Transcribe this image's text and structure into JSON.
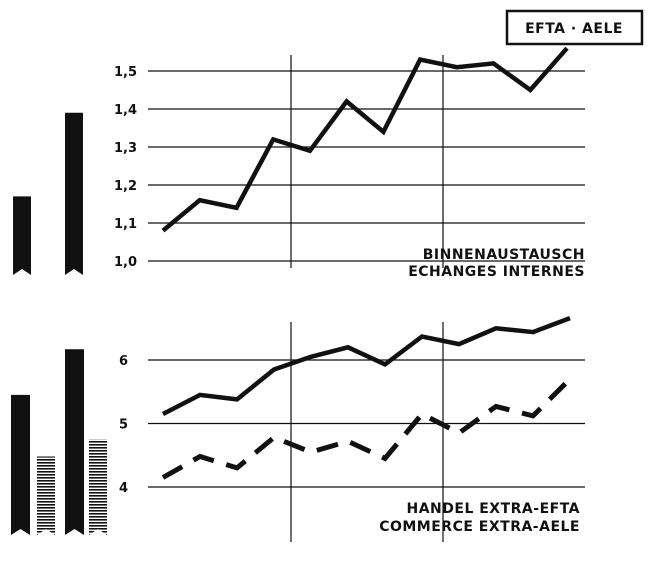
{
  "title": "EFTA · AELE",
  "chart_data": [
    {
      "type": "line",
      "caption": [
        "BINNENAUSTAUSCH",
        "ECHANGES INTERNES"
      ],
      "yticks": [
        1.0,
        1.1,
        1.2,
        1.3,
        1.4,
        1.5
      ],
      "ytick_labels": [
        "1,0",
        "1,1",
        "1,2",
        "1,3",
        "1,4",
        "1,5"
      ],
      "ylim": [
        1.0,
        1.55
      ],
      "grid": true,
      "series": [
        {
          "style": "solid",
          "values": [
            1.08,
            1.16,
            1.14,
            1.32,
            1.29,
            1.42,
            1.34,
            1.53,
            1.51,
            1.52,
            1.45,
            1.56
          ]
        }
      ],
      "side_bars": [
        {
          "value": 1.17,
          "pattern": "solid"
        },
        {
          "value": 1.39,
          "pattern": "solid"
        }
      ]
    },
    {
      "type": "line",
      "caption": [
        "HANDEL EXTRA-EFTA",
        "COMMERCE EXTRA-AELE"
      ],
      "yticks": [
        4,
        5,
        6
      ],
      "ytick_labels": [
        "4",
        "5",
        "6"
      ],
      "ylim": [
        3.8,
        6.7
      ],
      "grid": true,
      "series": [
        {
          "style": "solid",
          "values": [
            5.15,
            5.45,
            5.38,
            5.85,
            6.05,
            6.2,
            5.93,
            6.37,
            6.25,
            6.5,
            6.44,
            6.66
          ]
        },
        {
          "style": "dashed",
          "values": [
            4.15,
            4.48,
            4.3,
            4.78,
            4.55,
            4.72,
            4.45,
            5.15,
            4.85,
            5.27,
            5.12,
            5.7
          ]
        }
      ],
      "side_bars": [
        {
          "value": 5.45,
          "pattern": "solid"
        },
        {
          "value": 4.48,
          "pattern": "hatched"
        },
        {
          "value": 6.17,
          "pattern": "solid"
        },
        {
          "value": 4.75,
          "pattern": "hatched"
        }
      ]
    }
  ]
}
